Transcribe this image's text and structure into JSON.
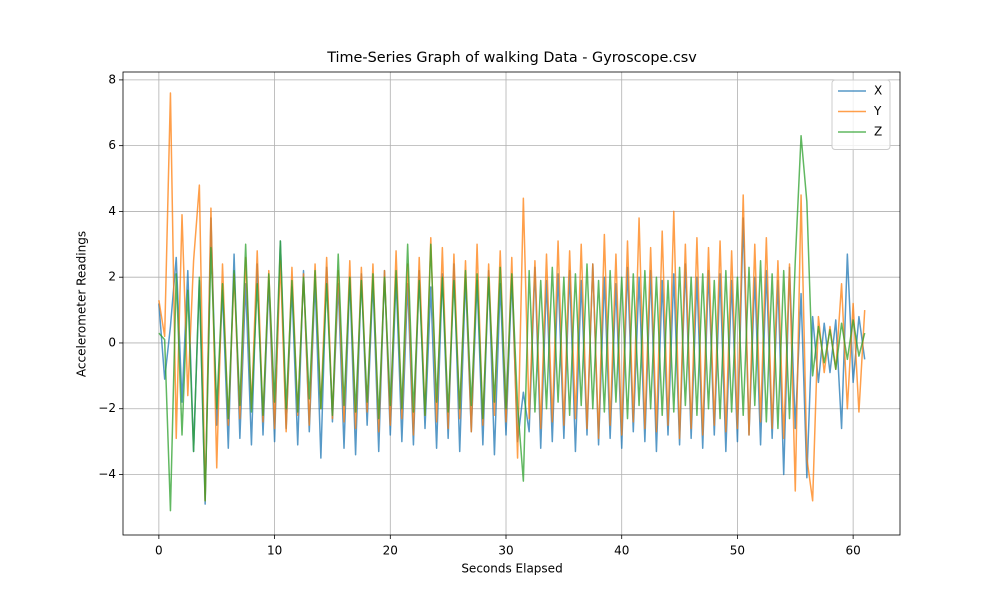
{
  "chart_data": {
    "type": "line",
    "title": "Time-Series Graph of walking Data - Gyroscope.csv",
    "x_label": "Seconds Elapsed",
    "y_label": "Accelerometer Readings",
    "x": [
      0,
      0.5,
      1,
      1.5,
      2,
      2.5,
      3,
      3.5,
      4,
      4.5,
      5,
      5.5,
      6,
      6.5,
      7,
      7.5,
      8,
      8.5,
      9,
      9.5,
      10,
      10.5,
      11,
      11.5,
      12,
      12.5,
      13,
      13.5,
      14,
      14.5,
      15,
      15.5,
      16,
      16.5,
      17,
      17.5,
      18,
      18.5,
      19,
      19.5,
      20,
      20.5,
      21,
      21.5,
      22,
      22.5,
      23,
      23.5,
      24,
      24.5,
      25,
      25.5,
      26,
      26.5,
      27,
      27.5,
      28,
      28.5,
      29,
      29.5,
      30,
      30.5,
      31,
      31.5,
      32,
      32.5,
      33,
      33.5,
      34,
      34.5,
      35,
      35.5,
      36,
      36.5,
      37,
      37.5,
      38,
      38.5,
      39,
      39.5,
      40,
      40.5,
      41,
      41.5,
      42,
      42.5,
      43,
      43.5,
      44,
      44.5,
      45,
      45.5,
      46,
      46.5,
      47,
      47.5,
      48,
      48.5,
      49,
      49.5,
      50,
      50.5,
      51,
      51.5,
      52,
      52.5,
      53,
      53.5,
      54,
      54.5,
      55,
      55.5,
      56,
      56.5,
      57,
      57.5,
      58,
      58.5,
      59,
      59.5,
      60,
      60.5,
      61
    ],
    "series": [
      {
        "name": "X",
        "color": "#1f77b4",
        "values": [
          1.2,
          -1.1,
          0.5,
          2.6,
          -1.8,
          2.2,
          -3.3,
          1.9,
          -4.9,
          3.8,
          -2.5,
          1.6,
          -3.2,
          2.7,
          -2.9,
          1.8,
          -3.1,
          2.4,
          -2.8,
          1.9,
          -3.0,
          3.1,
          -2.6,
          1.7,
          -3.1,
          2.2,
          -2.7,
          1.9,
          -3.5,
          2.3,
          -2.4,
          1.8,
          -3.2,
          2.0,
          -3.4,
          2.1,
          -2.5,
          1.9,
          -3.3,
          2.2,
          -2.8,
          2.0,
          -3.0,
          1.8,
          -3.1,
          2.2,
          -2.6,
          1.7,
          -3.2,
          2.1,
          -2.9,
          2.4,
          -3.3,
          2.0,
          -2.7,
          1.9,
          -3.1,
          2.2,
          -3.4,
          1.8,
          -2.8,
          2.0,
          -3.0,
          -1.5,
          -2.7,
          2.3,
          -3.2,
          1.9,
          -3.0,
          2.1,
          -2.9,
          2.2,
          -3.3,
          1.9,
          -2.8,
          2.4,
          -3.1,
          2.0,
          -2.9,
          1.8,
          -3.2,
          2.3,
          -2.7,
          2.0,
          -3.0,
          2.2,
          -3.3,
          1.9,
          -2.8,
          2.1,
          -3.1,
          2.4,
          -2.9,
          2.0,
          -3.2,
          2.2,
          -2.8,
          2.1,
          -3.3,
          1.9,
          -3.0,
          3.8,
          -2.8,
          2.0,
          -3.1,
          2.2,
          -2.9,
          1.9,
          -4.0,
          2.3,
          -2.6,
          1.5,
          -4.1,
          0.8,
          -1.2,
          0.6,
          -0.9,
          0.7,
          -2.6,
          2.7,
          -1.2,
          0.8,
          -0.5
        ]
      },
      {
        "name": "Y",
        "color": "#ff7f0e",
        "values": [
          1.3,
          0.2,
          7.6,
          -2.9,
          3.9,
          -1.6,
          2.5,
          4.8,
          -4.8,
          4.1,
          -3.8,
          2.4,
          -2.5,
          2.1,
          -2.3,
          2.6,
          -2.0,
          2.8,
          -2.4,
          2.2,
          -2.6,
          2.5,
          -2.7,
          2.3,
          -2.2,
          2.1,
          -2.5,
          2.4,
          -2.0,
          2.6,
          -2.3,
          2.2,
          -2.4,
          2.5,
          -2.6,
          2.3,
          -2.1,
          2.4,
          -2.7,
          2.2,
          -2.5,
          2.8,
          -2.3,
          2.4,
          -2.8,
          2.6,
          -2.2,
          3.2,
          -2.4,
          2.9,
          -2.6,
          2.7,
          -2.3,
          2.5,
          -2.7,
          3.0,
          -2.5,
          2.4,
          -2.2,
          2.8,
          -2.4,
          2.6,
          -3.5,
          4.4,
          -2.3,
          2.5,
          -2.6,
          2.7,
          -2.4,
          3.1,
          -2.5,
          2.8,
          -2.3,
          3.0,
          -2.6,
          2.4,
          -2.9,
          3.3,
          -2.5,
          2.7,
          -2.8,
          3.1,
          -2.4,
          3.8,
          -2.6,
          2.9,
          -2.7,
          3.4,
          -2.5,
          4.0,
          -2.9,
          3.0,
          -2.6,
          3.2,
          -2.8,
          2.9,
          -2.5,
          3.1,
          -2.7,
          2.8,
          -2.6,
          4.5,
          -2.8,
          3.0,
          -2.4,
          3.2,
          -2.6,
          2.5,
          -2.9,
          2.4,
          -4.5,
          4.5,
          -3.5,
          -4.8,
          0.8,
          -0.9,
          0.5,
          -0.8,
          1.8,
          -2.0,
          1.2,
          -2.1,
          1.0
        ]
      },
      {
        "name": "Z",
        "color": "#2ca02c",
        "values": [
          0.3,
          0.1,
          -5.1,
          2.1,
          -2.8,
          1.6,
          -3.3,
          2.0,
          -4.8,
          2.9,
          -2.0,
          1.8,
          -2.3,
          2.2,
          -1.9,
          3.0,
          -2.1,
          1.8,
          -2.2,
          2.1,
          -1.8,
          3.1,
          -2.0,
          1.9,
          -2.1,
          2.0,
          -1.7,
          2.2,
          -2.0,
          1.8,
          -2.2,
          2.7,
          -1.9,
          2.0,
          -2.1,
          1.9,
          -1.8,
          2.1,
          -2.3,
          2.0,
          -1.9,
          2.2,
          -2.0,
          3.0,
          -2.1,
          1.9,
          -2.2,
          3.0,
          -1.8,
          2.0,
          -2.1,
          1.9,
          -2.0,
          2.2,
          -1.9,
          2.1,
          -2.3,
          2.0,
          -1.8,
          2.3,
          -2.0,
          2.1,
          -1.9,
          -4.2,
          2.2,
          -2.1,
          1.9,
          -2.0,
          2.3,
          -1.8,
          2.0,
          -2.2,
          2.1,
          -1.9,
          2.4,
          -2.0,
          1.9,
          -2.1,
          2.2,
          -1.8,
          2.0,
          -2.3,
          2.1,
          -1.9,
          2.2,
          -2.0,
          2.0,
          -2.2,
          1.9,
          -2.1,
          2.3,
          -1.9,
          2.0,
          -2.2,
          2.1,
          -2.0,
          1.9,
          -2.3,
          2.2,
          -2.1,
          2.0,
          -2.2,
          2.3,
          -1.9,
          2.5,
          -2.4,
          2.1,
          -2.6,
          2.2,
          -2.3,
          2.5,
          6.3,
          4.3,
          -1.0,
          0.5,
          -0.6,
          0.4,
          -0.8,
          0.6,
          -0.5,
          0.7,
          -0.4,
          0.3
        ]
      }
    ],
    "xlim": [
      -3.1,
      64.05
    ],
    "ylim": [
      -5.84,
      8.24
    ],
    "xticks": [
      0,
      10,
      20,
      30,
      40,
      50,
      60
    ],
    "yticks": [
      {
        "value": -4,
        "label": "−4"
      },
      {
        "value": -2,
        "label": "−2"
      },
      0,
      2,
      4,
      6,
      8
    ],
    "grid": true,
    "legend": "upper right"
  }
}
